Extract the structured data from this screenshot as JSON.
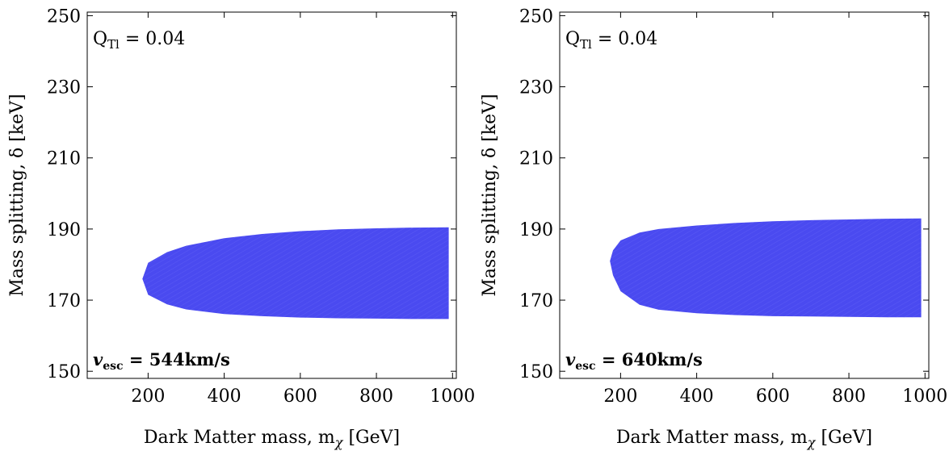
{
  "chart_data": [
    {
      "type": "area",
      "title": "",
      "xlabel": "Dark Matter mass, m",
      "xlabel_sub": "χ",
      "xlabel_unit": "[GeV]",
      "ylabel": "Mass splitting, δ [keV]",
      "xlim": [
        40,
        1010
      ],
      "ylim": [
        148,
        251
      ],
      "xticks": [
        200,
        400,
        600,
        800,
        1000
      ],
      "yticks": [
        150,
        170,
        190,
        210,
        230,
        250
      ],
      "grid": false,
      "annotation_q": "Q",
      "annotation_q_sub": "Tl",
      "annotation_q_value": "= 0.04",
      "annotation_v": "v",
      "annotation_v_sub": "esc",
      "annotation_v_value": "= 544km/s",
      "fill_color": "#4a4af0",
      "series": [
        {
          "x": [
            185,
            200,
            250,
            300,
            400,
            500,
            600,
            700,
            800,
            900,
            990
          ],
          "y_upper": [
            176,
            180.5,
            183.5,
            185.3,
            187.4,
            188.6,
            189.4,
            189.9,
            190.2,
            190.4,
            190.5
          ],
          "y_lower": [
            176,
            171.5,
            168.8,
            167.4,
            166.1,
            165.5,
            165.1,
            164.9,
            164.8,
            164.7,
            164.7
          ]
        }
      ]
    },
    {
      "type": "area",
      "title": "",
      "xlabel": "Dark Matter mass, m",
      "xlabel_sub": "χ",
      "xlabel_unit": "[GeV]",
      "ylabel": "Mass splitting, δ [keV]",
      "xlim": [
        40,
        1010
      ],
      "ylim": [
        148,
        251
      ],
      "xticks": [
        200,
        400,
        600,
        800,
        1000
      ],
      "yticks": [
        150,
        170,
        190,
        210,
        230,
        250
      ],
      "grid": false,
      "annotation_q": "Q",
      "annotation_q_sub": "Tl",
      "annotation_q_value": "= 0.04",
      "annotation_v": "v",
      "annotation_v_sub": "esc",
      "annotation_v_value": "= 640km/s",
      "fill_color": "#4a4af0",
      "series": [
        {
          "x": [
            172,
            180,
            200,
            250,
            300,
            400,
            500,
            600,
            700,
            800,
            900,
            990
          ],
          "y_upper": [
            181,
            184,
            186.8,
            189,
            190,
            191,
            191.7,
            192.2,
            192.5,
            192.7,
            192.9,
            193
          ],
          "y_lower": [
            181,
            177,
            172.5,
            168.7,
            167.3,
            166.3,
            165.8,
            165.5,
            165.4,
            165.3,
            165.2,
            165.2
          ]
        }
      ]
    }
  ]
}
